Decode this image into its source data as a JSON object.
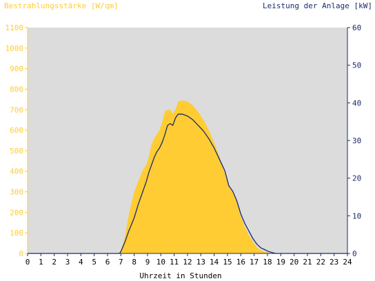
{
  "colors": {
    "background": "#ffffff",
    "plot_background": "#dcdcdc",
    "left_axis": "#ffcc33",
    "right_axis": "#1a2a6c",
    "irradiance_fill": "#ffcc33",
    "power_line": "#1a2a6c",
    "tick_text_x": "#000000"
  },
  "chart_data": {
    "type": "area",
    "title": "",
    "xlabel": "Uhrzeit in Stunden",
    "y1label": "Bestrahlungsstärke [W/qm]",
    "y2label": "Leistung der Anlage [kW]",
    "xlim": [
      0,
      24
    ],
    "y1lim": [
      0,
      1100
    ],
    "y2lim": [
      0,
      60
    ],
    "x_ticks": [
      "0",
      "1",
      "2",
      "3",
      "4",
      "5",
      "6",
      "7",
      "8",
      "9",
      "10",
      "11",
      "12",
      "13",
      "14",
      "15",
      "16",
      "17",
      "18",
      "19",
      "20",
      "21",
      "22",
      "23",
      "24"
    ],
    "y1_ticks": [
      "0",
      "100",
      "200",
      "300",
      "400",
      "500",
      "600",
      "700",
      "800",
      "900",
      "1000",
      "1100"
    ],
    "y2_ticks": [
      "0",
      "10",
      "20",
      "30",
      "40",
      "50",
      "60"
    ],
    "grid": false,
    "series": [
      {
        "name": "Bestrahlungsstärke [W/qm]",
        "axis": "left",
        "style": "area",
        "x": [
          0,
          6.8,
          7.0,
          7.3,
          7.6,
          8.0,
          8.3,
          8.6,
          8.9,
          9.1,
          9.3,
          9.5,
          9.7,
          9.9,
          10.1,
          10.3,
          10.5,
          10.7,
          10.9,
          11.1,
          11.3,
          11.6,
          12.0,
          12.4,
          12.8,
          13.2,
          13.6,
          14.0,
          14.4,
          14.8,
          15.1,
          15.4,
          15.7,
          16.0,
          16.3,
          16.6,
          16.9,
          17.2,
          17.5,
          17.8,
          18.1,
          18.3,
          18.5,
          24
        ],
        "y": [
          0,
          0,
          10,
          80,
          190,
          300,
          350,
          400,
          430,
          470,
          530,
          560,
          580,
          600,
          640,
          690,
          700,
          700,
          680,
          700,
          740,
          745,
          740,
          720,
          690,
          650,
          600,
          540,
          470,
          390,
          330,
          300,
          250,
          180,
          130,
          90,
          60,
          30,
          15,
          8,
          3,
          1,
          0,
          0
        ]
      },
      {
        "name": "Leistung der Anlage [kW]",
        "axis": "right",
        "style": "line",
        "x": [
          0,
          6.9,
          7.0,
          7.3,
          7.6,
          8.0,
          8.3,
          8.6,
          8.9,
          9.1,
          9.3,
          9.5,
          9.7,
          9.9,
          10.1,
          10.3,
          10.5,
          10.7,
          10.9,
          11.1,
          11.3,
          11.6,
          12.0,
          12.4,
          12.8,
          13.2,
          13.6,
          14.0,
          14.4,
          14.8,
          15.1,
          15.4,
          15.7,
          16.0,
          16.3,
          16.6,
          16.9,
          17.2,
          17.5,
          17.8,
          18.1,
          18.3,
          18.5,
          18.7,
          24
        ],
        "y": [
          0,
          0,
          0.5,
          3,
          6,
          9.5,
          13,
          16,
          19,
          21.5,
          23.5,
          25.5,
          27,
          28,
          29.5,
          31.5,
          34,
          34.5,
          34,
          36,
          37,
          37,
          36.5,
          35.5,
          34,
          32.5,
          30.5,
          28,
          25,
          22,
          18,
          16.5,
          14,
          10.5,
          8,
          6,
          4,
          2.5,
          1.5,
          1,
          0.5,
          0.3,
          0.1,
          0,
          0
        ]
      }
    ]
  }
}
